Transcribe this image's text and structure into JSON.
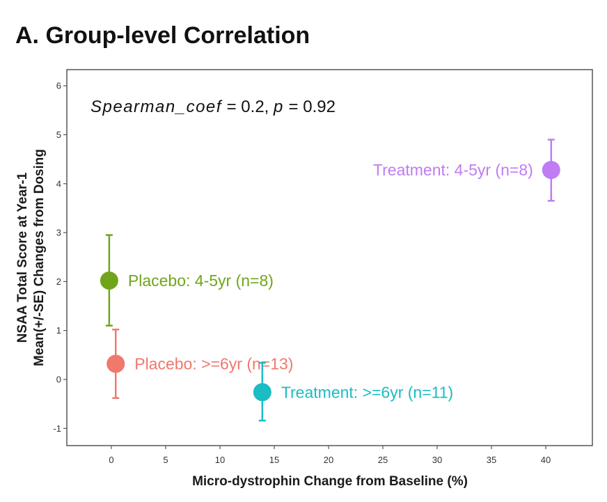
{
  "chart_data": {
    "type": "scatter",
    "title": "A. Group-level Correlation",
    "xlabel": "Micro-dystrophin Change from Baseline (%)",
    "ylabel_lines": [
      "NSAA Total Score at Year-1",
      "Mean(+/-SE) Changes from Dosing"
    ],
    "xlim": [
      -2.5,
      43.5
    ],
    "ylim": [
      -1.3,
      6.3
    ],
    "x_ticks": [
      0,
      5,
      10,
      15,
      20,
      25,
      30,
      35,
      40
    ],
    "y_ticks": [
      -1,
      0,
      1,
      2,
      3,
      4,
      5,
      6
    ],
    "grid": false,
    "annotation": {
      "coef_name": "Spearman_coef",
      "coef_value": " = 0.2, ",
      "p_name": "p",
      "p_value": " = 0.92"
    },
    "points": [
      {
        "label": "Placebo: 4-5yr (n=8)",
        "x": -0.2,
        "y": 2.02,
        "y_low": 1.1,
        "y_high": 2.95,
        "color": "#70A51B"
      },
      {
        "label": "Placebo: >=6yr (n=13)",
        "x": 0.4,
        "y": 0.32,
        "y_low": -0.38,
        "y_high": 1.02,
        "color": "#F0786D"
      },
      {
        "label": "Treatment: >=6yr (n=11)",
        "x": 13.9,
        "y": -0.26,
        "y_low": -0.84,
        "y_high": 0.34,
        "color": "#1BBCC3"
      },
      {
        "label": "Treatment: 4-5yr (n=8)",
        "x": 40.5,
        "y": 4.28,
        "y_low": 3.65,
        "y_high": 4.9,
        "color": "#BF7CF4"
      }
    ]
  }
}
